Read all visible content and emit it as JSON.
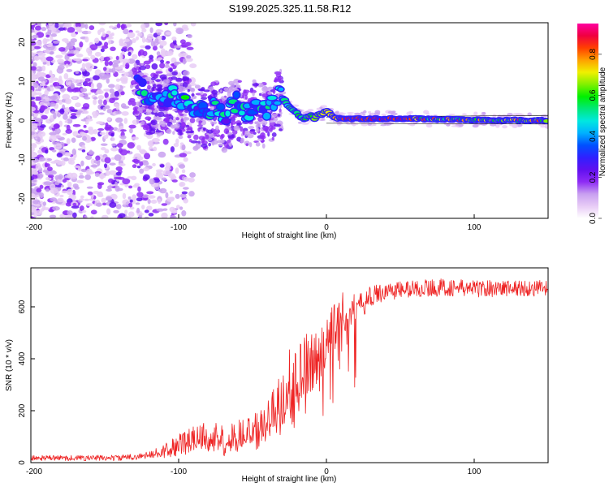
{
  "figure": {
    "title": "S199.2025.325.11.58.R12"
  },
  "colormap": [
    "#ffffff",
    "#e8ccf6",
    "#c8a0f0",
    "#8e2bf5",
    "#6010f0",
    "#3020ff",
    "#0050ff",
    "#00b0ff",
    "#00e8e0",
    "#00e87a",
    "#00f000",
    "#80f000",
    "#f0f000",
    "#ffa000",
    "#ff4000",
    "#f00040",
    "#ff00a0"
  ],
  "chart_data": [
    {
      "id": "spectrogram",
      "type": "heatmap",
      "xlabel": "Height of straight line (km)",
      "ylabel": "Frequency (Hz)",
      "xlim": [
        -200,
        150
      ],
      "ylim": [
        -25,
        25
      ],
      "xticks": [
        -200,
        -100,
        0,
        100
      ],
      "yticks": [
        -20,
        -10,
        0,
        10,
        20
      ],
      "ridge": {
        "x": [
          -125,
          -120,
          -115,
          -110,
          -105,
          -100,
          -95,
          -90,
          -85,
          -80,
          -75,
          -70,
          -65,
          -60,
          -55,
          -50,
          -45,
          -40,
          -35,
          -32,
          -30,
          -28,
          -25,
          -22,
          -20,
          -18,
          -15,
          -12,
          -10,
          -8,
          -5,
          -3,
          0,
          3,
          5,
          10,
          20,
          40,
          60,
          80,
          100,
          120,
          150
        ],
        "y": [
          9,
          5,
          6,
          5,
          7,
          5,
          6,
          2,
          3,
          2,
          4,
          1,
          3,
          5,
          1,
          4,
          3,
          3,
          5,
          7,
          6,
          5,
          3.5,
          2.5,
          2,
          1,
          0.5,
          1,
          1.5,
          0.5,
          2,
          1.5,
          2.5,
          1.5,
          0.8,
          0.5,
          0.5,
          0.5,
          0.5,
          0.3,
          0.2,
          0.1,
          0
        ]
      },
      "colorbar": {
        "label": "Normalized spectral amplitude",
        "range": [
          0,
          0.95
        ],
        "ticks": [
          0.0,
          0.2,
          0.4,
          0.6,
          0.8
        ]
      }
    },
    {
      "id": "snr",
      "type": "line",
      "xlabel": "Height of straight line (km)",
      "ylabel": "SNR (10 * v/v)",
      "xlim": [
        -200,
        150
      ],
      "ylim": [
        0,
        750
      ],
      "xticks": [
        -200,
        -100,
        0,
        100
      ],
      "yticks": [
        0,
        200,
        400,
        600
      ],
      "series": [
        {
          "name": "SNR",
          "color": "#ee2222",
          "envelope_x": [
            -200,
            -140,
            -125,
            -110,
            -100,
            -90,
            -80,
            -70,
            -60,
            -50,
            -45,
            -40,
            -35,
            -30,
            -25,
            -22,
            -20,
            -18,
            -15,
            -12,
            -10,
            -5,
            0,
            5,
            10,
            15,
            20,
            25,
            30,
            40,
            60,
            80,
            100,
            120,
            150
          ],
          "envelope_y": [
            18,
            18,
            25,
            45,
            65,
            90,
            100,
            85,
            105,
            120,
            125,
            160,
            200,
            245,
            330,
            330,
            350,
            350,
            370,
            390,
            385,
            420,
            440,
            520,
            590,
            580,
            600,
            610,
            640,
            660,
            670,
            675,
            670,
            672,
            670
          ],
          "noise_x": [
            -200,
            -120,
            -110,
            -100,
            -80,
            -60,
            -50,
            -40,
            -30,
            -20,
            -10,
            0,
            10,
            20,
            30,
            40,
            150
          ],
          "noise_amp": [
            10,
            12,
            25,
            45,
            60,
            65,
            70,
            80,
            110,
            140,
            120,
            110,
            90,
            50,
            40,
            35,
            32
          ]
        }
      ]
    }
  ]
}
